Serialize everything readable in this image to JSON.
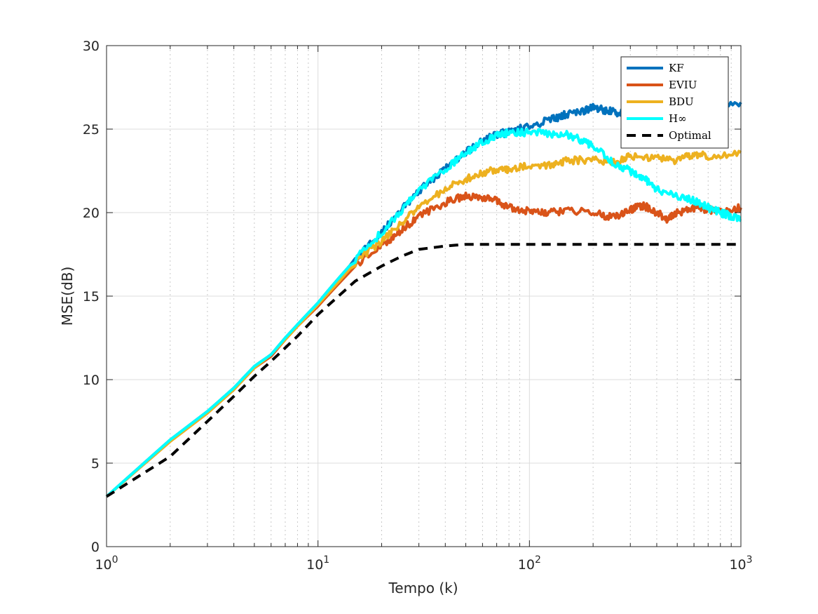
{
  "chart_data": {
    "type": "line",
    "xscale": "log",
    "xlim": [
      1,
      1000
    ],
    "ylim": [
      0,
      30
    ],
    "xlabel": "Tempo (k)",
    "ylabel": "MSE(dB)",
    "xticks": [
      {
        "value": 1,
        "base": "10",
        "exp": "0"
      },
      {
        "value": 10,
        "base": "10",
        "exp": "1"
      },
      {
        "value": 100,
        "base": "10",
        "exp": "2"
      },
      {
        "value": 1000,
        "base": "10",
        "exp": "3"
      }
    ],
    "yticks": [
      0,
      5,
      10,
      15,
      20,
      25,
      30
    ],
    "grid": true,
    "legend_position": "top-right",
    "series": [
      {
        "name": "KF",
        "color": "#0072BD",
        "dash": false,
        "points": [
          [
            1,
            3.0
          ],
          [
            2,
            6.4
          ],
          [
            3,
            8.1
          ],
          [
            4,
            9.5
          ],
          [
            5,
            10.8
          ],
          [
            6,
            11.5
          ],
          [
            7,
            12.5
          ],
          [
            8,
            13.3
          ],
          [
            10,
            14.6
          ],
          [
            12,
            15.8
          ],
          [
            15,
            17.2
          ],
          [
            20,
            18.8
          ],
          [
            25,
            20.2
          ],
          [
            30,
            21.3
          ],
          [
            40,
            22.6
          ],
          [
            50,
            23.6
          ],
          [
            60,
            24.3
          ],
          [
            70,
            24.7
          ],
          [
            80,
            24.8
          ],
          [
            100,
            25.2
          ],
          [
            130,
            25.6
          ],
          [
            150,
            25.9
          ],
          [
            180,
            26.1
          ],
          [
            200,
            26.3
          ],
          [
            230,
            26.1
          ],
          [
            260,
            26.0
          ],
          [
            300,
            26.2
          ],
          [
            400,
            26.5
          ],
          [
            500,
            26.6
          ],
          [
            700,
            26.5
          ],
          [
            1000,
            26.6
          ]
        ]
      },
      {
        "name": "EVIU",
        "color": "#D95319",
        "dash": false,
        "points": [
          [
            1,
            3.0
          ],
          [
            2,
            6.3
          ],
          [
            3,
            8.0
          ],
          [
            4,
            9.4
          ],
          [
            5,
            10.7
          ],
          [
            6,
            11.4
          ],
          [
            7,
            12.4
          ],
          [
            8,
            13.2
          ],
          [
            10,
            14.4
          ],
          [
            12,
            15.5
          ],
          [
            15,
            16.8
          ],
          [
            20,
            18.0
          ],
          [
            25,
            19.0
          ],
          [
            30,
            19.8
          ],
          [
            40,
            20.6
          ],
          [
            50,
            21.0
          ],
          [
            60,
            20.9
          ],
          [
            70,
            20.7
          ],
          [
            80,
            20.3
          ],
          [
            100,
            20.1
          ],
          [
            120,
            20.0
          ],
          [
            150,
            20.1
          ],
          [
            200,
            20.0
          ],
          [
            250,
            19.7
          ],
          [
            300,
            20.2
          ],
          [
            350,
            20.4
          ],
          [
            400,
            20.0
          ],
          [
            450,
            19.6
          ],
          [
            500,
            20.0
          ],
          [
            600,
            20.3
          ],
          [
            700,
            20.2
          ],
          [
            800,
            20.0
          ],
          [
            1000,
            20.3
          ]
        ]
      },
      {
        "name": "BDU",
        "color": "#EDB120",
        "dash": false,
        "points": [
          [
            1,
            3.0
          ],
          [
            2,
            6.3
          ],
          [
            3,
            8.0
          ],
          [
            4,
            9.4
          ],
          [
            5,
            10.7
          ],
          [
            6,
            11.5
          ],
          [
            7,
            12.4
          ],
          [
            8,
            13.2
          ],
          [
            10,
            14.5
          ],
          [
            12,
            15.6
          ],
          [
            15,
            17.0
          ],
          [
            20,
            18.3
          ],
          [
            25,
            19.4
          ],
          [
            30,
            20.3
          ],
          [
            40,
            21.4
          ],
          [
            50,
            22.0
          ],
          [
            60,
            22.4
          ],
          [
            70,
            22.6
          ],
          [
            80,
            22.6
          ],
          [
            100,
            22.8
          ],
          [
            130,
            22.9
          ],
          [
            150,
            23.1
          ],
          [
            200,
            23.2
          ],
          [
            250,
            23.0
          ],
          [
            300,
            23.4
          ],
          [
            400,
            23.3
          ],
          [
            500,
            23.1
          ],
          [
            600,
            23.5
          ],
          [
            700,
            23.4
          ],
          [
            1000,
            23.6
          ]
        ]
      },
      {
        "name": "H∞",
        "color": "#00FFFF",
        "dash": false,
        "points": [
          [
            1,
            3.0
          ],
          [
            2,
            6.4
          ],
          [
            3,
            8.1
          ],
          [
            4,
            9.5
          ],
          [
            5,
            10.8
          ],
          [
            6,
            11.5
          ],
          [
            7,
            12.5
          ],
          [
            8,
            13.3
          ],
          [
            10,
            14.6
          ],
          [
            12,
            15.8
          ],
          [
            15,
            17.2
          ],
          [
            20,
            18.8
          ],
          [
            25,
            20.2
          ],
          [
            30,
            21.3
          ],
          [
            40,
            22.6
          ],
          [
            50,
            23.6
          ],
          [
            60,
            24.2
          ],
          [
            70,
            24.6
          ],
          [
            80,
            24.8
          ],
          [
            100,
            24.8
          ],
          [
            130,
            24.7
          ],
          [
            150,
            24.7
          ],
          [
            180,
            24.3
          ],
          [
            200,
            24.0
          ],
          [
            250,
            23.0
          ],
          [
            300,
            22.5
          ],
          [
            350,
            22.0
          ],
          [
            400,
            21.4
          ],
          [
            500,
            21.0
          ],
          [
            600,
            20.7
          ],
          [
            700,
            20.3
          ],
          [
            800,
            20.0
          ],
          [
            900,
            19.8
          ],
          [
            1000,
            19.5
          ]
        ]
      },
      {
        "name": "Optimal",
        "color": "#000000",
        "dash": true,
        "points": [
          [
            1,
            3.0
          ],
          [
            2,
            5.4
          ],
          [
            3,
            7.5
          ],
          [
            4,
            9.0
          ],
          [
            5,
            10.2
          ],
          [
            6,
            11.1
          ],
          [
            8,
            12.6
          ],
          [
            10,
            13.9
          ],
          [
            12,
            14.8
          ],
          [
            15,
            15.9
          ],
          [
            20,
            16.8
          ],
          [
            25,
            17.4
          ],
          [
            30,
            17.8
          ],
          [
            40,
            18.0
          ],
          [
            50,
            18.1
          ],
          [
            70,
            18.1
          ],
          [
            100,
            18.1
          ],
          [
            1000,
            18.1
          ]
        ]
      }
    ]
  }
}
